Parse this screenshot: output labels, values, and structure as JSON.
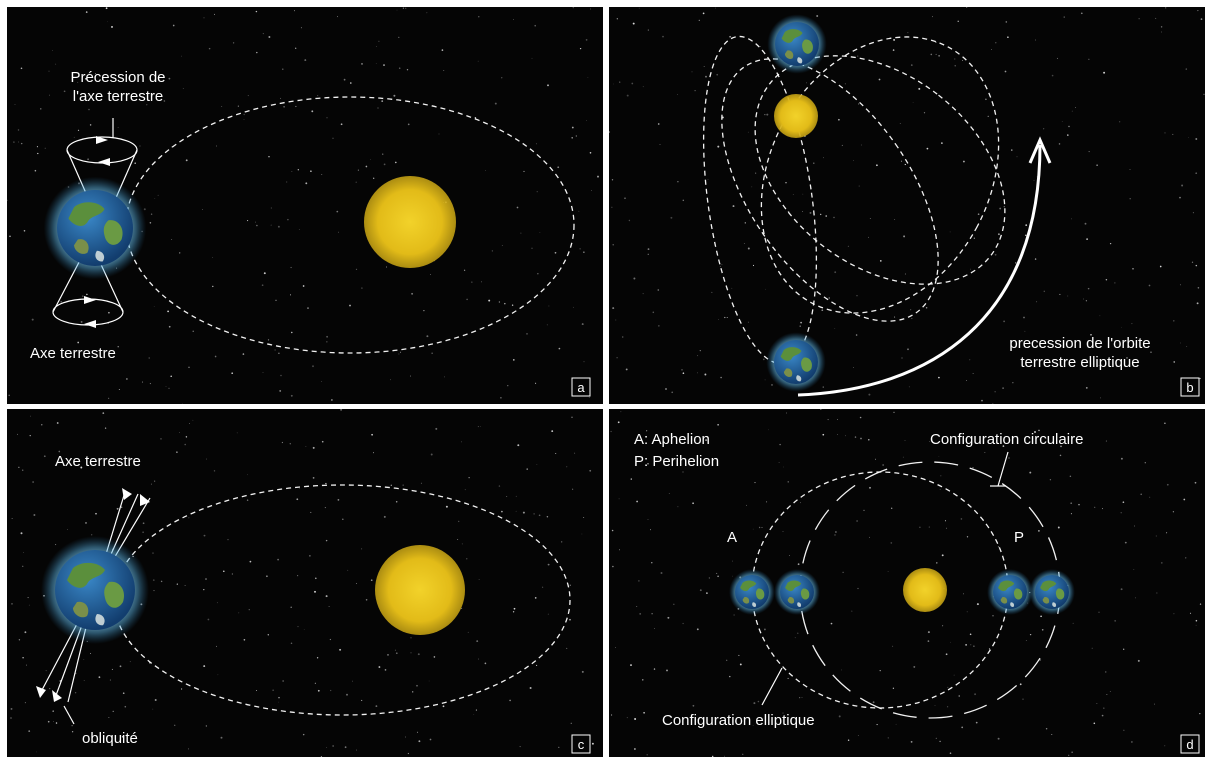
{
  "panels": {
    "a": {
      "tag": "a",
      "label_precession_line1": "Précession de",
      "label_precession_line2": "l'axe terrestre",
      "label_axis": "Axe terrestre"
    },
    "b": {
      "tag": "b",
      "label_line1": "precession de l'orbite",
      "label_line2": "terrestre elliptique"
    },
    "c": {
      "tag": "c",
      "label_axis": "Axe terrestre",
      "label_obliquity": "obliquité"
    },
    "d": {
      "tag": "d",
      "legend_a": "A: Aphelion",
      "legend_p": "P: Perihelion",
      "label_circular": "Configuration circulaire",
      "label_elliptic": "Configuration elliptique",
      "marker_a": "A",
      "marker_p": "P"
    }
  },
  "colors": {
    "space": "#050505",
    "sun": "#e8c21a",
    "earth_ocean": "#1f5fa0",
    "earth_land": "#4e8a3a",
    "glow": "#8fd4ff",
    "divider": "#d8d8d8"
  }
}
